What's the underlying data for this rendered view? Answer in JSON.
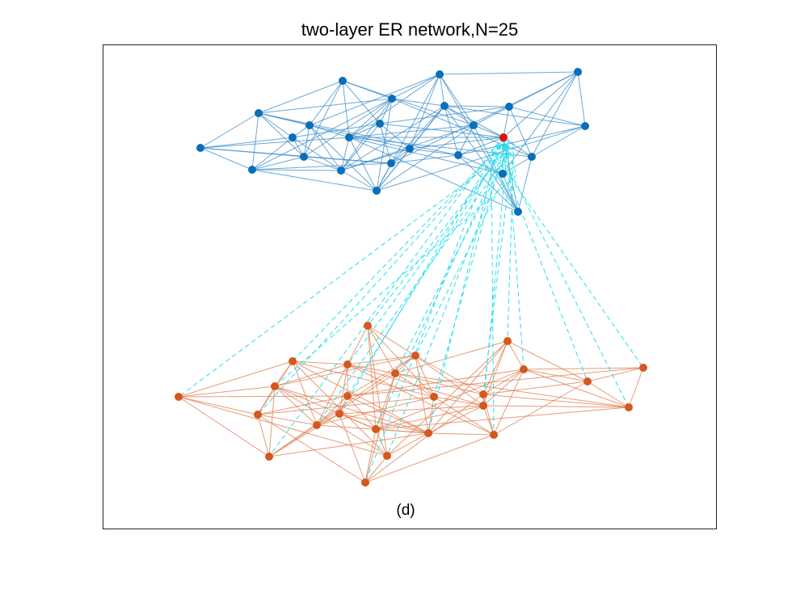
{
  "title": "two-layer ER network,N=25",
  "caption": "(d)"
}
